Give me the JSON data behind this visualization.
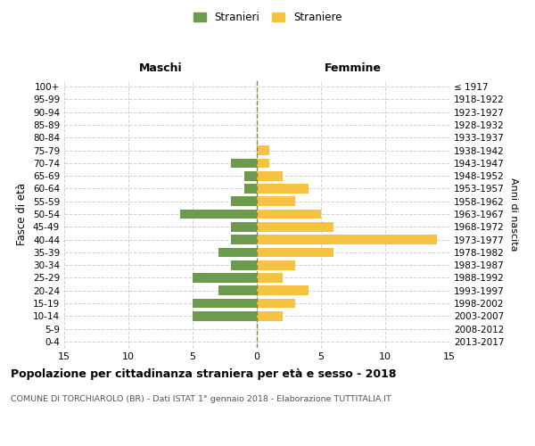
{
  "age_groups": [
    "100+",
    "95-99",
    "90-94",
    "85-89",
    "80-84",
    "75-79",
    "70-74",
    "65-69",
    "60-64",
    "55-59",
    "50-54",
    "45-49",
    "40-44",
    "35-39",
    "30-34",
    "25-29",
    "20-24",
    "15-19",
    "10-14",
    "5-9",
    "0-4"
  ],
  "birth_years": [
    "≤ 1917",
    "1918-1922",
    "1923-1927",
    "1928-1932",
    "1933-1937",
    "1938-1942",
    "1943-1947",
    "1948-1952",
    "1953-1957",
    "1958-1962",
    "1963-1967",
    "1968-1972",
    "1973-1977",
    "1978-1982",
    "1983-1987",
    "1988-1992",
    "1993-1997",
    "1998-2002",
    "2003-2007",
    "2008-2012",
    "2013-2017"
  ],
  "males": [
    0,
    0,
    0,
    0,
    0,
    0,
    2,
    1,
    1,
    2,
    6,
    2,
    2,
    3,
    2,
    5,
    3,
    5,
    5,
    0,
    0
  ],
  "females": [
    0,
    0,
    0,
    0,
    0,
    1,
    1,
    2,
    4,
    3,
    5,
    6,
    14,
    6,
    3,
    2,
    4,
    3,
    2,
    0,
    0
  ],
  "male_color": "#6d9b4e",
  "female_color": "#f5c242",
  "title": "Popolazione per cittadinanza straniera per età e sesso - 2018",
  "subtitle": "COMUNE DI TORCHIAROLO (BR) - Dati ISTAT 1° gennaio 2018 - Elaborazione TUTTITALIA.IT",
  "ylabel_left": "Fasce di età",
  "ylabel_right": "Anni di nascita",
  "xlabel_left": "Maschi",
  "xlabel_right": "Femmine",
  "legend_male": "Stranieri",
  "legend_female": "Straniere",
  "xlim": 15,
  "background_color": "#ffffff",
  "grid_color": "#cccccc"
}
